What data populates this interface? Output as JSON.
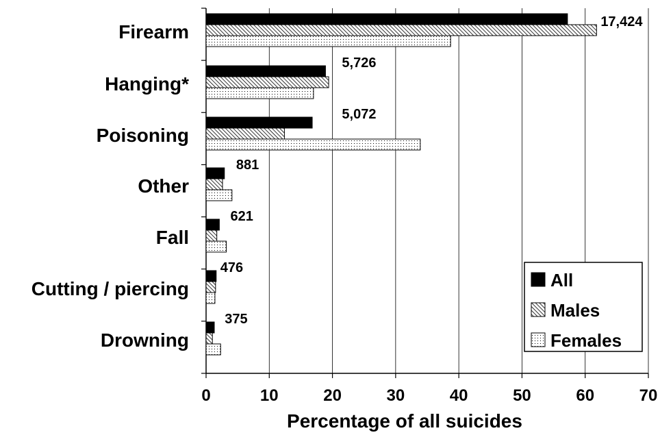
{
  "chart_data": {
    "type": "bar",
    "orientation": "horizontal",
    "categories": [
      "Firearm",
      "Hanging*",
      "Poisoning",
      "Other",
      "Fall",
      "Cutting / piercing",
      "Drowning"
    ],
    "series": [
      {
        "name": "All",
        "values": [
          57.2,
          18.9,
          16.8,
          2.9,
          2.1,
          1.6,
          1.3
        ],
        "fill": "solid"
      },
      {
        "name": "Males",
        "values": [
          61.8,
          19.4,
          12.4,
          2.6,
          1.7,
          1.5,
          1.0
        ],
        "fill": "hatch"
      },
      {
        "name": "Females",
        "values": [
          38.7,
          17.0,
          33.9,
          4.1,
          3.2,
          1.4,
          2.3
        ],
        "fill": "dots"
      }
    ],
    "counts": [
      "17,424",
      "5,726",
      "5,072",
      "881",
      "621",
      "476",
      "375"
    ],
    "title": "",
    "xlabel": "Percentage of all suicides",
    "ylabel": "",
    "xlim": [
      0,
      70
    ],
    "xticks": [
      "0",
      "10",
      "20",
      "30",
      "40",
      "50",
      "60",
      "70"
    ],
    "grid": "vertical",
    "legend_position": "bottom-right",
    "colors": {
      "bar_stroke": "#000000",
      "solid": "#000000",
      "background": "#ffffff",
      "grid": "#000000"
    }
  }
}
